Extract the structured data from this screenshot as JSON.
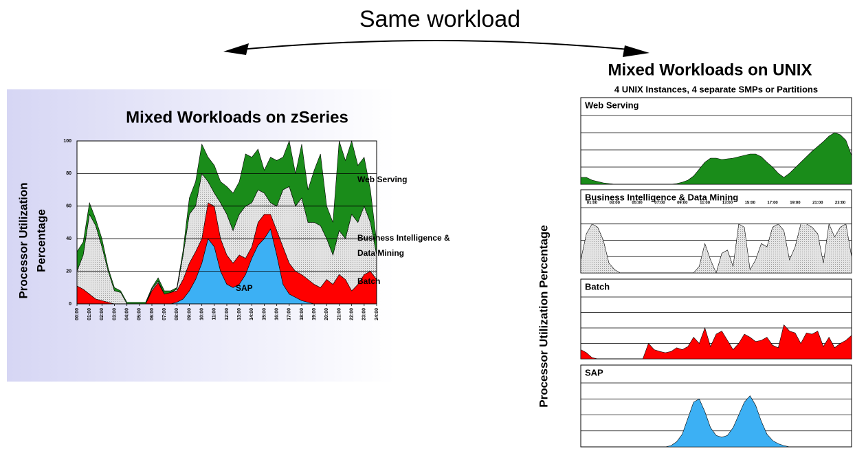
{
  "heading": "Same workload",
  "chart_data": [
    {
      "type": "stacked-area",
      "title": "Mixed Workloads on zSeries",
      "ylabel": [
        "Processor Utilization",
        "Percentage"
      ],
      "x": [
        0,
        0.5,
        1,
        1.5,
        2,
        2.5,
        3,
        3.5,
        4,
        4.5,
        5,
        5.5,
        6,
        6.5,
        7,
        7.5,
        8,
        8.5,
        9,
        9.5,
        10,
        10.5,
        11,
        11.5,
        12,
        12.5,
        13,
        13.5,
        14,
        14.5,
        15,
        15.5,
        16,
        16.5,
        17,
        17.5,
        18,
        18.5,
        19,
        19.5,
        20,
        20.5,
        21,
        21.5,
        22,
        22.5,
        23,
        23.5,
        24
      ],
      "xlim": [
        0,
        24
      ],
      "ylim": [
        0,
        100
      ],
      "yticks": [
        0,
        20,
        40,
        60,
        80,
        100
      ],
      "grid": true,
      "xticks": [
        {
          "value": 0,
          "label": "00:00"
        },
        {
          "value": 1,
          "label": "01:00"
        },
        {
          "value": 2,
          "label": "02:00"
        },
        {
          "value": 3,
          "label": "03:00"
        },
        {
          "value": 4,
          "label": "04:00"
        },
        {
          "value": 5,
          "label": "05:00"
        },
        {
          "value": 6,
          "label": "06:00"
        },
        {
          "value": 7,
          "label": "07:00"
        },
        {
          "value": 8,
          "label": "08:00"
        },
        {
          "value": 9,
          "label": "09:00"
        },
        {
          "value": 10,
          "label": "10:00"
        },
        {
          "value": 11,
          "label": "11:00"
        },
        {
          "value": 12,
          "label": "12:00"
        },
        {
          "value": 13,
          "label": "13:00"
        },
        {
          "value": 14,
          "label": "14:00"
        },
        {
          "value": 15,
          "label": "15:00"
        },
        {
          "value": 16,
          "label": "16:00"
        },
        {
          "value": 17,
          "label": "17:00"
        },
        {
          "value": 18,
          "label": "18:00"
        },
        {
          "value": 19,
          "label": "19:00"
        },
        {
          "value": 20,
          "label": "20:00"
        },
        {
          "value": 21,
          "label": "21:00"
        },
        {
          "value": 22,
          "label": "22:00"
        },
        {
          "value": 23,
          "label": "23:00"
        },
        {
          "value": 24,
          "label": "24:00"
        }
      ],
      "series": [
        {
          "name": "SAP",
          "color": "#3cb0f4",
          "values": [
            0,
            0,
            0,
            0,
            0,
            0,
            0,
            0,
            0,
            0,
            0,
            0,
            0,
            0,
            0,
            0,
            1,
            3,
            8,
            15,
            25,
            40,
            35,
            20,
            12,
            10,
            12,
            18,
            28,
            36,
            40,
            46,
            30,
            12,
            6,
            4,
            2,
            1,
            0,
            0,
            0,
            0,
            0,
            0,
            0,
            0,
            0,
            0,
            0
          ]
        },
        {
          "name": "Batch",
          "color": "#ff0000",
          "values": [
            11,
            9,
            6,
            3,
            2,
            1,
            0,
            0,
            0,
            0,
            0,
            0,
            8,
            13,
            6,
            7,
            7,
            12,
            17,
            17,
            15,
            22,
            25,
            20,
            18,
            15,
            18,
            10,
            7,
            14,
            15,
            9,
            15,
            23,
            19,
            16,
            16,
            14,
            12,
            10,
            15,
            12,
            18,
            15,
            8,
            12,
            18,
            20,
            15
          ]
        },
        {
          "name": "Business Intelligence & Data Mining",
          "color": "#dcdcdc",
          "values": [
            9,
            21,
            49,
            45,
            33,
            19,
            8,
            7,
            0,
            0,
            0,
            0,
            1,
            1,
            0,
            0,
            1,
            15,
            30,
            28,
            40,
            13,
            8,
            22,
            25,
            20,
            25,
            32,
            27,
            20,
            13,
            7,
            15,
            35,
            47,
            40,
            47,
            35,
            38,
            38,
            25,
            18,
            27,
            25,
            47,
            38,
            42,
            30,
            15
          ]
        },
        {
          "name": "Web Serving",
          "color": "#1a8c1a",
          "values": [
            12,
            8,
            7,
            4,
            5,
            2,
            2,
            1,
            1,
            1,
            1,
            1,
            1,
            2,
            2,
            1,
            1,
            3,
            10,
            15,
            18,
            15,
            17,
            13,
            17,
            23,
            20,
            32,
            28,
            25,
            14,
            28,
            28,
            20,
            28,
            20,
            33,
            20,
            32,
            44,
            20,
            20,
            55,
            48,
            45,
            35,
            30,
            20,
            8
          ]
        }
      ]
    },
    {
      "type": "area",
      "title": "Web Serving",
      "color": "#1a8c1a",
      "x": [
        0,
        0.5,
        1,
        1.5,
        2,
        2.5,
        3,
        3.5,
        4,
        4.5,
        5,
        5.5,
        6,
        6.5,
        7,
        7.5,
        8,
        8.5,
        9,
        9.5,
        10,
        10.5,
        11,
        11.5,
        12,
        12.5,
        13,
        13.5,
        14,
        14.5,
        15,
        15.5,
        16,
        16.5,
        17,
        17.5,
        18,
        18.5,
        19,
        19.5,
        20,
        20.5,
        21,
        21.5,
        22,
        22.5,
        23,
        23.5,
        24
      ],
      "values": [
        10,
        10,
        6,
        4,
        2,
        1,
        0,
        0,
        0,
        0,
        0,
        0,
        0,
        0,
        0,
        0,
        0,
        1,
        3,
        6,
        12,
        22,
        32,
        38,
        38,
        36,
        37,
        38,
        40,
        42,
        44,
        44,
        40,
        32,
        25,
        16,
        10,
        16,
        24,
        32,
        40,
        48,
        55,
        62,
        70,
        75,
        72,
        64,
        42
      ],
      "xlim": [
        0,
        24
      ],
      "ylim": [
        0,
        100
      ],
      "yticks": [
        25,
        50,
        75,
        100
      ],
      "ytick_labels": false,
      "grid": true
    },
    {
      "type": "area",
      "title": "Business Intelligence & Data Mining",
      "color": "#c8c8c8",
      "x": [
        0,
        0.5,
        1,
        1.5,
        2,
        2.5,
        3,
        3.5,
        4,
        4.5,
        5,
        5.5,
        6,
        6.5,
        7,
        7.5,
        8,
        8.5,
        9,
        9.5,
        10,
        10.5,
        11,
        11.5,
        12,
        12.5,
        13,
        13.5,
        14,
        14.5,
        15,
        15.5,
        16,
        16.5,
        17,
        17.5,
        18,
        18.5,
        19,
        19.5,
        20,
        20.5,
        21,
        21.5,
        22,
        22.5,
        23,
        23.5,
        24
      ],
      "values": [
        20,
        60,
        75,
        70,
        50,
        15,
        5,
        0,
        0,
        0,
        0,
        0,
        0,
        0,
        0,
        0,
        0,
        0,
        0,
        0,
        0,
        10,
        45,
        20,
        0,
        30,
        35,
        10,
        75,
        70,
        5,
        20,
        45,
        40,
        70,
        75,
        65,
        20,
        40,
        75,
        75,
        70,
        60,
        15,
        75,
        55,
        70,
        75,
        25
      ],
      "xlim": [
        0,
        24
      ],
      "ylim": [
        0,
        100
      ],
      "yticks": [
        25,
        50,
        75,
        100
      ],
      "ytick_labels": false,
      "grid": true,
      "xticks": [
        {
          "value": 1,
          "label": "01:00"
        },
        {
          "value": 3,
          "label": "03:00"
        },
        {
          "value": 5,
          "label": "05:00"
        },
        {
          "value": 7,
          "label": "07:00"
        },
        {
          "value": 9,
          "label": "09:00"
        },
        {
          "value": 11,
          "label": "11:00"
        },
        {
          "value": 13,
          "label": "13:00"
        },
        {
          "value": 15,
          "label": "15:00"
        },
        {
          "value": 17,
          "label": "17:00"
        },
        {
          "value": 19,
          "label": "19:00"
        },
        {
          "value": 21,
          "label": "21:00"
        },
        {
          "value": 23,
          "label": "23:00"
        }
      ]
    },
    {
      "type": "area",
      "title": "Batch",
      "color": "#ff0000",
      "x": [
        0,
        0.5,
        1,
        1.5,
        2,
        2.5,
        3,
        3.5,
        4,
        4.5,
        5,
        5.5,
        6,
        6.5,
        7,
        7.5,
        8,
        8.5,
        9,
        9.5,
        10,
        10.5,
        11,
        11.5,
        12,
        12.5,
        13,
        13.5,
        14,
        14.5,
        15,
        15.5,
        16,
        16.5,
        17,
        17.5,
        18,
        18.5,
        19,
        19.5,
        20,
        20.5,
        21,
        21.5,
        22,
        22.5,
        23,
        23.5,
        24
      ],
      "values": [
        15,
        10,
        2,
        0,
        0,
        0,
        0,
        0,
        0,
        0,
        0,
        0,
        25,
        15,
        12,
        10,
        12,
        18,
        15,
        20,
        35,
        25,
        50,
        20,
        40,
        45,
        30,
        15,
        25,
        40,
        35,
        28,
        30,
        35,
        22,
        18,
        55,
        45,
        42,
        25,
        42,
        40,
        45,
        20,
        35,
        18,
        25,
        30,
        38
      ],
      "xlim": [
        0,
        24
      ],
      "ylim": [
        0,
        100
      ],
      "yticks": [
        25,
        50,
        75,
        100
      ],
      "ytick_labels": false,
      "grid": true
    },
    {
      "type": "area",
      "title": "SAP",
      "color": "#3cb0f4",
      "x": [
        0,
        0.5,
        1,
        1.5,
        2,
        2.5,
        3,
        3.5,
        4,
        4.5,
        5,
        5.5,
        6,
        6.5,
        7,
        7.5,
        8,
        8.5,
        9,
        9.5,
        10,
        10.5,
        11,
        11.5,
        12,
        12.5,
        13,
        13.5,
        14,
        14.5,
        15,
        15.5,
        16,
        16.5,
        17,
        17.5,
        18,
        18.5,
        19,
        19.5,
        20,
        20.5,
        21,
        21.5,
        22,
        22.5,
        23,
        23.5,
        24
      ],
      "values": [
        0,
        0,
        0,
        0,
        0,
        0,
        0,
        0,
        0,
        0,
        0,
        0,
        0,
        0,
        0,
        0,
        2,
        8,
        20,
        45,
        70,
        75,
        55,
        30,
        18,
        15,
        18,
        30,
        50,
        70,
        80,
        65,
        40,
        20,
        10,
        5,
        2,
        0,
        0,
        0,
        0,
        0,
        0,
        0,
        0,
        0,
        0,
        0,
        0
      ],
      "xlim": [
        0,
        24
      ],
      "ylim": [
        0,
        100
      ],
      "yticks": [
        25,
        50,
        75,
        100
      ],
      "ytick_labels": false,
      "grid": true
    }
  ],
  "unix": {
    "title": "Mixed Workloads on UNIX",
    "subtitle": "4 UNIX Instances, 4 separate SMPs or Partitions",
    "ylabel": "Processor Utilization Percentage"
  }
}
